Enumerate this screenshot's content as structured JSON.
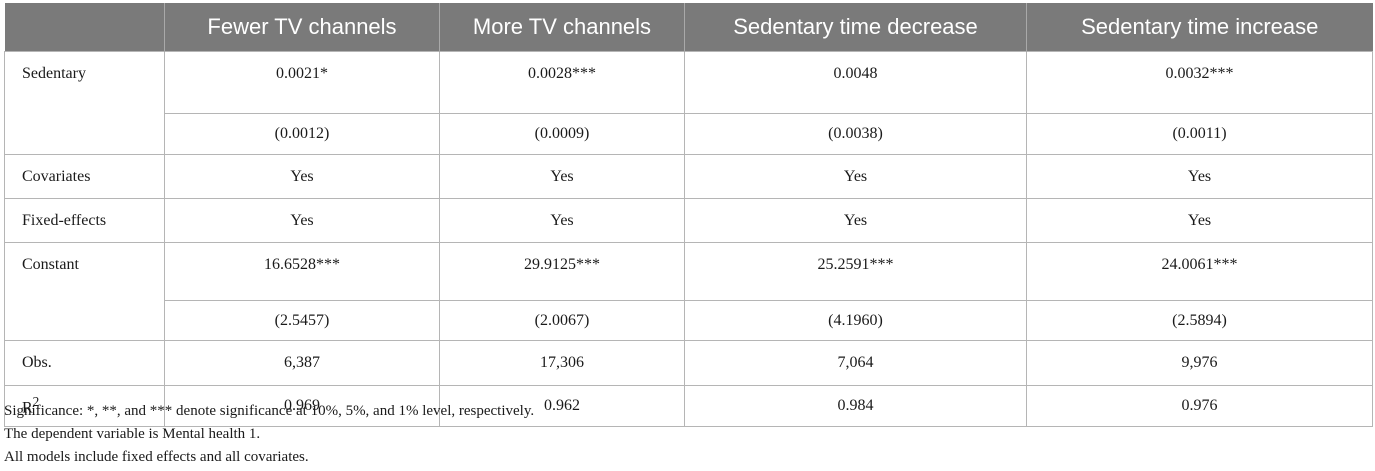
{
  "table": {
    "columns": [
      "",
      "Fewer TV channels",
      "More TV channels",
      "Sedentary time decrease",
      "Sedentary time increase"
    ],
    "rows": {
      "sedentary": {
        "label": "Sedentary",
        "values": [
          "0.0021*",
          "0.0028***",
          "0.0048",
          "0.0032***"
        ],
        "se": [
          "(0.0012)",
          "(0.0009)",
          "(0.0038)",
          "(0.0011)"
        ]
      },
      "covariates": {
        "label": "Covariates",
        "values": [
          "Yes",
          "Yes",
          "Yes",
          "Yes"
        ]
      },
      "fixed_effects": {
        "label": "Fixed-effects",
        "values": [
          "Yes",
          "Yes",
          "Yes",
          "Yes"
        ]
      },
      "constant": {
        "label": "Constant",
        "values": [
          "16.6528***",
          "29.9125***",
          "25.2591***",
          "24.0061***"
        ],
        "se": [
          "(2.5457)",
          "(2.0067)",
          "(4.1960)",
          "(2.5894)"
        ]
      },
      "obs": {
        "label": "Obs.",
        "values": [
          "6,387",
          "17,306",
          "7,064",
          "9,976"
        ]
      },
      "r2": {
        "label": "R",
        "label_sup": "2",
        "values": [
          "0.969",
          "0.962",
          "0.984",
          "0.976"
        ]
      }
    }
  },
  "notes": [
    "Significance: *, **, and *** denote significance at 10%, 5%, and 1% level, respectively.",
    "The dependent variable is Mental health 1.",
    "All models include fixed effects and all covariates."
  ]
}
